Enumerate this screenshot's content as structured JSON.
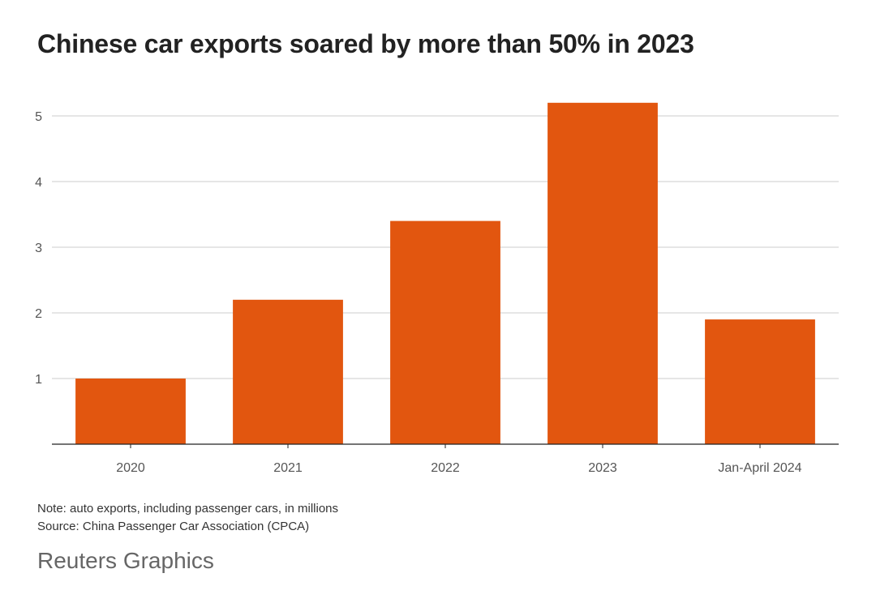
{
  "title": "Chinese car exports soared by more than 50% in 2023",
  "note": "Note: auto exports, including passenger cars, in millions",
  "source": "Source: China Passenger Car Association (CPCA)",
  "brand": "Reuters Graphics",
  "colors": {
    "bar": "#e2560f",
    "grid": "#cccccc",
    "axis": "#222222",
    "text": "#555555"
  },
  "chart_data": {
    "type": "bar",
    "title": "Chinese car exports soared by more than 50% in 2023",
    "xlabel": "",
    "ylabel": "",
    "categories": [
      "2020",
      "2021",
      "2022",
      "2023",
      "Jan-April 2024"
    ],
    "values": [
      1.0,
      2.2,
      3.4,
      5.2,
      1.9
    ],
    "unit": "millions",
    "ylim": [
      0,
      5.5
    ],
    "yticks": [
      1,
      2,
      3,
      4,
      5
    ],
    "grid": true,
    "legend": "none"
  }
}
